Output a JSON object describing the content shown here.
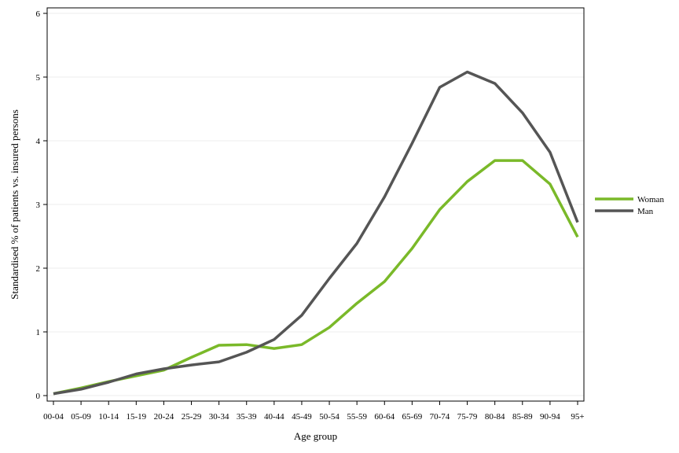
{
  "chart_data": {
    "type": "line",
    "title": "",
    "xlabel": "Age group",
    "ylabel": "Standardised % of patients vs. insured persons",
    "ylim": [
      0,
      6
    ],
    "yticks": [
      0,
      1,
      2,
      3,
      4,
      5,
      6
    ],
    "grid": true,
    "legend_position": "right",
    "categories": [
      "00-04",
      "05-09",
      "10-14",
      "15-19",
      "20-24",
      "25-29",
      "30-34",
      "35-39",
      "40-44",
      "45-49",
      "50-54",
      "55-59",
      "60-64",
      "65-69",
      "70-74",
      "75-79",
      "80-84",
      "85-89",
      "90-94",
      "95+"
    ],
    "series": [
      {
        "name": "Woman",
        "color": "#7ab929",
        "values": [
          0.03,
          0.12,
          0.22,
          0.31,
          0.4,
          0.6,
          0.79,
          0.8,
          0.74,
          0.8,
          1.07,
          1.45,
          1.79,
          2.31,
          2.92,
          3.36,
          3.69,
          3.69,
          3.32,
          2.49
        ]
      },
      {
        "name": "Man",
        "color": "#555555",
        "values": [
          0.03,
          0.1,
          0.21,
          0.34,
          0.42,
          0.48,
          0.53,
          0.68,
          0.88,
          1.26,
          1.84,
          2.39,
          3.12,
          3.96,
          4.84,
          5.08,
          4.9,
          4.44,
          3.82,
          2.72
        ]
      }
    ]
  }
}
